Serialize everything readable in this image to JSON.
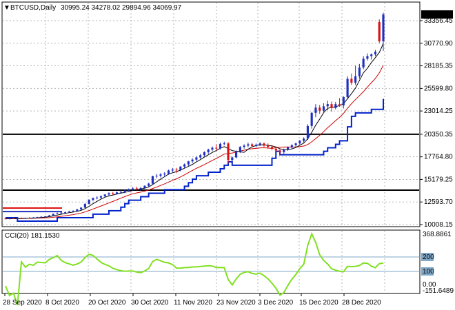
{
  "header": {
    "arrow": "▼",
    "symbol": "BTCUSD,Daily",
    "ohlc": "30995.24 34278.02 29894.96 34069.97"
  },
  "price_axis": {
    "ticks": [
      "33356.45",
      "30770.90",
      "28185.35",
      "25599.80",
      "23014.25",
      "20350.35",
      "17764.80",
      "15179.25",
      "12593.70",
      "10008.15"
    ],
    "current_price": "34069.97"
  },
  "cci": {
    "title": "CCI(20) 181.1530",
    "ticks": [
      "368.8861",
      "200",
      "100",
      "0.00",
      "-151.6489"
    ]
  },
  "date_axis": {
    "labels": [
      "28 Sep 2020",
      "8 Oct 2020",
      "20 Oct 2020",
      "30 Oct 2020",
      "11 Nov 2020",
      "23 Nov 2020",
      "3 Dec 2020",
      "15 Dec 2020",
      "28 Dec 2020"
    ]
  },
  "colors": {
    "bull": "#1f2fbf",
    "bear": "#e01010",
    "ma_fast": "#000000",
    "ma_slow": "#cc0000",
    "trail": "#0022cc",
    "cci_line": "#80e020",
    "level_line": "#000000",
    "grid": "#b4b4b4"
  },
  "chart_data": {
    "type": "candlestick",
    "title": "BTCUSD,Daily",
    "candles": [
      [
        10700,
        10800,
        10620,
        10690
      ],
      [
        10690,
        10780,
        10600,
        10720
      ],
      [
        10720,
        10800,
        10640,
        10660
      ],
      [
        10660,
        10760,
        10580,
        10740
      ],
      [
        10740,
        10820,
        10660,
        10700
      ],
      [
        10700,
        10800,
        10640,
        10780
      ],
      [
        10780,
        10860,
        10700,
        10750
      ],
      [
        10750,
        10860,
        10690,
        10820
      ],
      [
        10820,
        10900,
        10750,
        10860
      ],
      [
        10860,
        10960,
        10780,
        10900
      ],
      [
        10900,
        11000,
        10820,
        10950
      ],
      [
        10950,
        11120,
        10880,
        11050
      ],
      [
        11050,
        11200,
        10960,
        11250
      ],
      [
        11250,
        11400,
        11180,
        11320
      ],
      [
        11320,
        11450,
        11200,
        11380
      ],
      [
        11380,
        11500,
        11300,
        11420
      ],
      [
        11420,
        11600,
        11350,
        11500
      ],
      [
        11500,
        11650,
        11420,
        11560
      ],
      [
        11560,
        11800,
        11480,
        11750
      ],
      [
        11750,
        12000,
        11650,
        11950
      ],
      [
        11950,
        12450,
        11900,
        12380
      ],
      [
        12380,
        12900,
        12300,
        12850
      ],
      [
        12850,
        13100,
        12700,
        13050
      ],
      [
        13050,
        13250,
        12900,
        13100
      ],
      [
        13100,
        13350,
        12950,
        13250
      ],
      [
        13250,
        13500,
        13100,
        13450
      ],
      [
        13450,
        13700,
        13300,
        13600
      ],
      [
        13600,
        13750,
        13400,
        13550
      ],
      [
        13550,
        13800,
        13450,
        13700
      ],
      [
        13700,
        13900,
        13550,
        13750
      ],
      [
        13750,
        14000,
        13600,
        13900
      ],
      [
        13900,
        14150,
        13800,
        14050
      ],
      [
        14050,
        14300,
        13900,
        14150
      ],
      [
        14150,
        14350,
        13950,
        14050
      ],
      [
        14050,
        14300,
        13900,
        14200
      ],
      [
        14200,
        14500,
        14100,
        14450
      ],
      [
        14450,
        14800,
        14350,
        14700
      ],
      [
        14700,
        15600,
        14600,
        15550
      ],
      [
        15550,
        15800,
        15300,
        15600
      ],
      [
        15600,
        15900,
        15400,
        15750
      ],
      [
        15750,
        16000,
        15500,
        15850
      ],
      [
        15850,
        16300,
        15700,
        16200
      ],
      [
        16200,
        16500,
        16000,
        16300
      ],
      [
        16300,
        16500,
        15900,
        16250
      ],
      [
        16250,
        16700,
        16100,
        16650
      ],
      [
        16650,
        17000,
        16500,
        16900
      ],
      [
        16900,
        17300,
        16700,
        17250
      ],
      [
        17250,
        17600,
        17050,
        17450
      ],
      [
        17450,
        17850,
        17300,
        17700
      ],
      [
        17700,
        18100,
        17550,
        17950
      ],
      [
        17950,
        18400,
        17800,
        18300
      ],
      [
        18300,
        18700,
        18100,
        18600
      ],
      [
        18600,
        18950,
        18400,
        18800
      ],
      [
        18800,
        19200,
        18500,
        18750
      ],
      [
        18750,
        19400,
        18600,
        19250
      ],
      [
        19250,
        19500,
        19100,
        19300
      ],
      [
        19300,
        19450,
        17000,
        17400
      ],
      [
        17400,
        17800,
        16800,
        17700
      ],
      [
        17700,
        18500,
        17600,
        18350
      ],
      [
        18350,
        19000,
        18200,
        18900
      ],
      [
        18900,
        19200,
        18700,
        19050
      ],
      [
        19050,
        19400,
        18850,
        19200
      ],
      [
        19200,
        19350,
        18900,
        19000
      ],
      [
        19000,
        19300,
        18850,
        19150
      ],
      [
        19150,
        19450,
        19000,
        19300
      ],
      [
        19300,
        19400,
        18900,
        19050
      ],
      [
        19050,
        19300,
        18700,
        18900
      ],
      [
        18900,
        19100,
        18500,
        18700
      ],
      [
        18700,
        18950,
        18300,
        18500
      ],
      [
        18500,
        18700,
        18000,
        18300
      ],
      [
        18300,
        18700,
        18100,
        18600
      ],
      [
        18600,
        18950,
        18450,
        18850
      ],
      [
        18850,
        19200,
        18700,
        19100
      ],
      [
        19100,
        19400,
        18950,
        19300
      ],
      [
        19300,
        19700,
        19200,
        19600
      ],
      [
        19600,
        20000,
        19400,
        19850
      ],
      [
        19850,
        21500,
        19700,
        21300
      ],
      [
        21300,
        22900,
        21000,
        22800
      ],
      [
        22800,
        23800,
        22300,
        23400
      ],
      [
        23400,
        23700,
        22700,
        23050
      ],
      [
        23050,
        23900,
        22800,
        23550
      ],
      [
        23550,
        24200,
        23100,
        23800
      ],
      [
        23800,
        24100,
        22950,
        23350
      ],
      [
        23350,
        24050,
        23200,
        23800
      ],
      [
        23800,
        24500,
        23500,
        23650
      ],
      [
        23650,
        24700,
        23300,
        24600
      ],
      [
        24600,
        27000,
        24400,
        26700
      ],
      [
        26700,
        27300,
        26000,
        26250
      ],
      [
        26250,
        28200,
        26000,
        27000
      ],
      [
        27000,
        28400,
        26700,
        28000
      ],
      [
        28000,
        29300,
        27800,
        29000
      ],
      [
        29000,
        29600,
        28800,
        29300
      ],
      [
        29300,
        29600,
        28900,
        29500
      ],
      [
        29500,
        30000,
        29300,
        29800
      ],
      [
        33200,
        33500,
        30800,
        30995
      ],
      [
        30995,
        34278,
        29895,
        34070
      ]
    ]
  }
}
